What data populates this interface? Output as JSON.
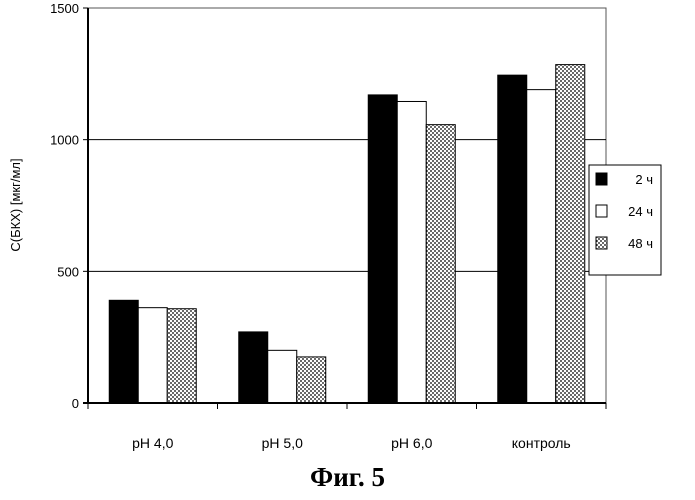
{
  "chart_data": {
    "type": "bar",
    "categories": [
      "pH 4,0",
      "pH 5,0",
      "pH 6,0",
      "контроль"
    ],
    "series": [
      {
        "name": "2 ч",
        "values": [
          390,
          270,
          1170,
          1245
        ],
        "fill": "solid-black"
      },
      {
        "name": "24 ч",
        "values": [
          362,
          200,
          1145,
          1190
        ],
        "fill": "white"
      },
      {
        "name": "48 ч",
        "values": [
          358,
          175,
          1057,
          1285
        ],
        "fill": "dotted-pattern"
      }
    ],
    "ylabel": "С(БКХ) [мкг/мл]",
    "ylim": [
      0,
      1500
    ],
    "yticks": [
      0,
      500,
      1000,
      1500
    ],
    "grid": true,
    "legend_position": "right",
    "colors": {
      "bar_dark": "#000000",
      "bar_light": "#ffffff",
      "axis": "#000000",
      "grid": "#000000"
    }
  },
  "caption": "Фиг. 5"
}
